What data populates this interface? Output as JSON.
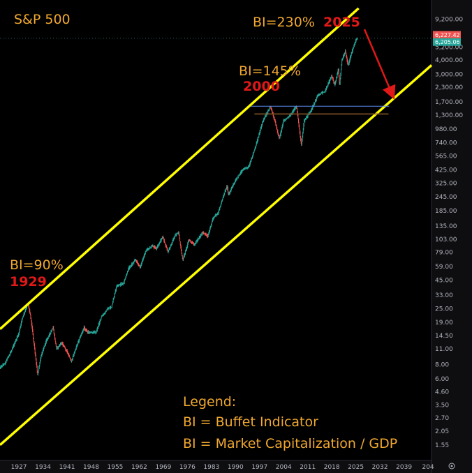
{
  "chart_data": {
    "type": "line",
    "title": "S&P 500",
    "y_scale": "log",
    "ylim": [
      1.4,
      11000
    ],
    "xlim": [
      1921.5,
      2047
    ],
    "y_ticks": [
      "9,200.00",
      "5,200.00",
      "4,000.00",
      "3,000.00",
      "2,300.00",
      "1,700.00",
      "1,300.00",
      "980.00",
      "740.00",
      "565.00",
      "425.00",
      "325.00",
      "245.00",
      "185.00",
      "135.00",
      "103.00",
      "79.00",
      "59.00",
      "45.00",
      "33.00",
      "25.00",
      "19.00",
      "14.50",
      "11.00",
      "8.00",
      "6.00",
      "4.60",
      "3.50",
      "2.70",
      "2.05",
      "1.55"
    ],
    "x_ticks": [
      "1927",
      "1934",
      "1941",
      "1948",
      "1955",
      "1962",
      "1969",
      "1976",
      "1983",
      "1990",
      "1997",
      "2004",
      "2011",
      "2018",
      "2025",
      "2032",
      "2039",
      "204"
    ],
    "price_tags": [
      {
        "label": "6,227.42",
        "value": 6227.42,
        "color": "#ef5350"
      },
      {
        "label": "6,205.06",
        "value": 6205.06,
        "color": "#26a69a"
      }
    ],
    "series": [
      {
        "x": [
          1921.5,
          1923,
          1925,
          1927,
          1928,
          1929.7,
          1930.5,
          1931.5,
          1932.5,
          1933.5,
          1935,
          1937,
          1938,
          1939.5,
          1941,
          1942.3,
          1944,
          1946,
          1947,
          1949.5,
          1951,
          1953,
          1954,
          1955.5,
          1957.5,
          1959,
          1961,
          1962.3,
          1964,
          1966,
          1967,
          1968.9,
          1970.4,
          1972.5,
          1973.5,
          1974.7,
          1976.5,
          1978,
          1980.5,
          1982,
          1983.5,
          1985,
          1987.6,
          1988,
          1990,
          1992,
          1994,
          1996,
          1998,
          2000.2,
          2001.5,
          2002.8,
          2004,
          2006,
          2007.8,
          2009.2,
          2010,
          2012,
          2014,
          2016,
          2018,
          2018.9,
          2020,
          2020.3,
          2021,
          2022,
          2022.8,
          2024,
          2025,
          2025.5
        ],
        "values": [
          7.5,
          8.2,
          10.8,
          15.0,
          20.5,
          28,
          21,
          12,
          6.5,
          9.5,
          13.0,
          17.0,
          11.0,
          12.5,
          10.5,
          8.5,
          12.0,
          17.0,
          15.5,
          15.5,
          21.0,
          25.0,
          26.0,
          40.0,
          42.0,
          57.0,
          68.0,
          58.0,
          82.0,
          90.0,
          85.0,
          108.0,
          80.0,
          112.0,
          118.0,
          67.0,
          102.0,
          92.0,
          118.0,
          110.0,
          158.0,
          178.0,
          310.0,
          255.0,
          340.0,
          420.0,
          460.0,
          700.0,
          1150.0,
          1550.0,
          1150.0,
          800.0,
          1150.0,
          1300.0,
          1560.0,
          700.0,
          1150.0,
          1420.0,
          1950.0,
          2100.0,
          2900.0,
          2400.0,
          3300.0,
          2350.0,
          4000.0,
          4800.0,
          3600.0,
          4800.0,
          5900.0,
          6210.0
        ]
      }
    ],
    "annotations": {
      "bi_1929": "BI=90%",
      "year_1929": "1929",
      "bi_2000": "BI=145%",
      "year_2000": "2000",
      "bi_2025": "BI=230%",
      "year_2025": "2025"
    },
    "legend": {
      "heading": "Legend:",
      "line1": "BI = Buffet Indicator",
      "line2": "BI = Market Capitalization / GDP"
    },
    "colors": {
      "channel": "#ffff00",
      "up_candle": "#26a69a",
      "down_candle": "#ef5350",
      "arrow": "#e01818",
      "support_blue": "#5b8def",
      "support_brown": "#8b5a2b"
    }
  }
}
